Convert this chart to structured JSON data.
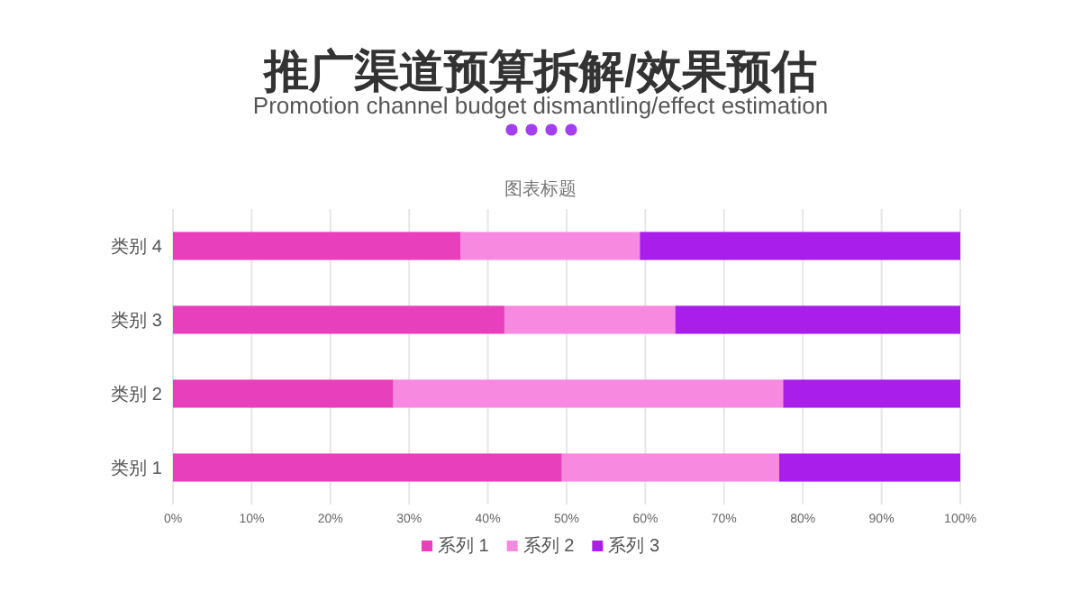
{
  "chart_data": {
    "type": "bar",
    "orientation": "horizontal",
    "stacked": true,
    "title": "推广渠道预算拆解/效果预估",
    "subtitle": "Promotion channel budget dismantling/effect estimation",
    "annotations": [
      "图表标题"
    ],
    "categories": [
      "类别 4",
      "类别 3",
      "类别 2",
      "类别 1"
    ],
    "series": [
      {
        "name": "系列 1",
        "color": "#e840bc",
        "values": [
          36.5,
          42.1,
          28.0,
          49.4
        ]
      },
      {
        "name": "系列 2",
        "color": "#f78ae0",
        "values": [
          22.8,
          21.7,
          49.5,
          27.6
        ]
      },
      {
        "name": "系列 3",
        "color": "#a91eeb",
        "values": [
          40.7,
          36.2,
          22.5,
          23.0
        ]
      }
    ],
    "xlim": [
      0,
      100
    ],
    "xticks": [
      {
        "value": 0,
        "label": "0%"
      },
      {
        "value": 10,
        "label": "10%"
      },
      {
        "value": 20,
        "label": "20%"
      },
      {
        "value": 30,
        "label": "30%"
      },
      {
        "value": 40,
        "label": "40%"
      },
      {
        "value": 50,
        "label": "50%"
      },
      {
        "value": 60,
        "label": "60%"
      },
      {
        "value": 70,
        "label": "70%"
      },
      {
        "value": 80,
        "label": "80%"
      },
      {
        "value": 90,
        "label": "90%"
      },
      {
        "value": 100,
        "label": "100%"
      }
    ],
    "grid": "x",
    "legend": "bottom"
  }
}
